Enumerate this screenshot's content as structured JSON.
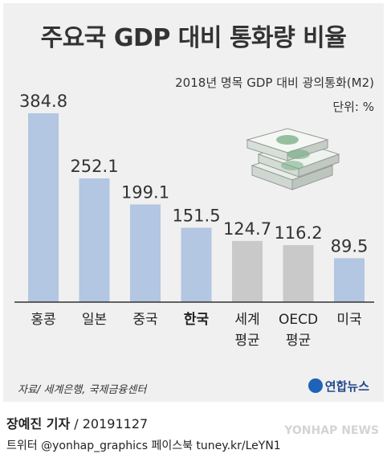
{
  "header": {
    "title": "주요국 GDP 대비 통화량 비율",
    "subtitle": "2018년 명목 GDP 대비 광의통화(M2)",
    "unit": "단위: %"
  },
  "chart_data": {
    "type": "bar",
    "title": "주요국 GDP 대비 통화량 비율",
    "subtitle": "2018년 명목 GDP 대비 광의통화(M2)",
    "unit": "%",
    "categories": [
      "홍콩",
      "일본",
      "중국",
      "한국",
      "세계\n평균",
      "OECD\n평균",
      "미국"
    ],
    "values": [
      384.8,
      252.1,
      199.1,
      151.5,
      124.7,
      116.2,
      89.5
    ],
    "value_labels": [
      "384.8",
      "252.1",
      "199.1",
      "151.5",
      "124.7",
      "116.2",
      "89.5"
    ],
    "bar_colors": [
      "#b3c6e2",
      "#b3c6e2",
      "#b3c6e2",
      "#b3c6e2",
      "#c9c9c9",
      "#c9c9c9",
      "#b3c6e2"
    ],
    "highlight_category": "한국",
    "grid": false,
    "legend": "none"
  },
  "footer": {
    "source": "자료/ 세계은행, 국제금융센터",
    "brand": "연합뉴스",
    "reporter": "장예진 기자",
    "date": " / 20191127",
    "social": "트위터 @yonhap_graphics  페이스북 tuney.kr/LeYN1",
    "watermark": "YONHAP NEWS"
  },
  "colors": {
    "background": "#f0f0f0",
    "country_bar": "#b3c6e2",
    "average_bar": "#c9c9c9",
    "baseline": "#333333",
    "brand_blue": "#1e63b8"
  },
  "icons": [
    "money-stack-icon",
    "yonhap-logo-icon"
  ]
}
